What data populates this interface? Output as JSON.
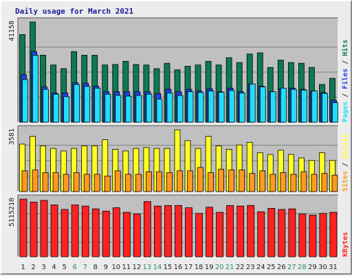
{
  "title": "Daily usage for March 2021",
  "colors": {
    "hits": "#0e7a55",
    "files": "#2244dd",
    "pages": "#22ddff",
    "visits": "#ffff22",
    "sites": "#ff9922",
    "kbytes": "#ff2222",
    "panel_bg": "#c0c0c0",
    "weekend_label": "#2a8a5a",
    "weekday_label": "#222222"
  },
  "chart_data": [
    {
      "type": "bar",
      "panel": "hits-files-pages",
      "max_label": "41158",
      "ymax": 41158,
      "legend": [
        {
          "text": "Pages",
          "color": "#22ddff"
        },
        {
          "text": " / ",
          "color": "#333333"
        },
        {
          "text": "Files",
          "color": "#2244dd"
        },
        {
          "text": " / ",
          "color": "#333333"
        },
        {
          "text": "Hits",
          "color": "#0e7a55"
        }
      ],
      "categories": [
        "1",
        "2",
        "3",
        "4",
        "5",
        "6",
        "7",
        "8",
        "9",
        "10",
        "11",
        "12",
        "13",
        "14",
        "15",
        "16",
        "17",
        "18",
        "19",
        "20",
        "21",
        "22",
        "23",
        "24",
        "25",
        "26",
        "27",
        "28",
        "29",
        "30",
        "31"
      ],
      "series": [
        {
          "name": "Hits",
          "values": [
            36000,
            41158,
            27500,
            23500,
            22000,
            29000,
            27500,
            27500,
            23500,
            23700,
            25000,
            23700,
            23500,
            22000,
            24200,
            21500,
            23000,
            23500,
            25000,
            23500,
            26500,
            24500,
            28000,
            28500,
            22500,
            25500,
            24500,
            24200,
            22500,
            15500,
            18000
          ]
        },
        {
          "name": "Files",
          "values": [
            19500,
            29000,
            14500,
            12000,
            12000,
            16200,
            16000,
            14800,
            12500,
            12500,
            12500,
            12500,
            12500,
            11800,
            13500,
            12500,
            13500,
            12800,
            13800,
            12500,
            14000,
            12500,
            15700,
            14800,
            12500,
            13800,
            14000,
            13500,
            12800,
            12200,
            9000
          ]
        },
        {
          "name": "Pages",
          "values": [
            17500,
            27500,
            13500,
            11500,
            10500,
            15500,
            14700,
            14000,
            11500,
            11000,
            10700,
            11000,
            11500,
            9500,
            12000,
            11000,
            12500,
            12200,
            12800,
            12300,
            13000,
            12000,
            15700,
            14500,
            12500,
            14000,
            13500,
            13200,
            12800,
            11800,
            8000
          ]
        }
      ]
    },
    {
      "type": "bar",
      "panel": "visits-sites",
      "max_label": "3581",
      "ymax": 3581,
      "legend": [
        {
          "text": "Sites",
          "color": "#ff9922"
        },
        {
          "text": " / ",
          "color": "#333333"
        },
        {
          "text": "Visits",
          "color": "#ffff22"
        }
      ],
      "categories": [
        "1",
        "2",
        "3",
        "4",
        "5",
        "6",
        "7",
        "8",
        "9",
        "10",
        "11",
        "12",
        "13",
        "14",
        "15",
        "16",
        "17",
        "18",
        "19",
        "20",
        "21",
        "22",
        "23",
        "24",
        "25",
        "26",
        "27",
        "28",
        "29",
        "30",
        "31"
      ],
      "series": [
        {
          "name": "Visits",
          "values": [
            2750,
            3200,
            2650,
            2500,
            2350,
            2500,
            2650,
            2650,
            3000,
            2450,
            2350,
            2500,
            2550,
            2500,
            2500,
            3581,
            2950,
            2500,
            3200,
            2650,
            2450,
            2700,
            2850,
            2250,
            2150,
            2400,
            2150,
            1950,
            1800,
            2250,
            1800
          ]
        },
        {
          "name": "Sites",
          "values": [
            1200,
            1250,
            1100,
            1100,
            1000,
            1100,
            1000,
            1000,
            900,
            1200,
            1000,
            1000,
            1150,
            1150,
            1100,
            1200,
            1200,
            1400,
            1100,
            1300,
            1250,
            1250,
            1050,
            1200,
            1000,
            1100,
            1000,
            1150,
            1000,
            1050,
            950
          ]
        }
      ]
    },
    {
      "type": "bar",
      "panel": "kbytes",
      "max_label": "5115210",
      "ymax": 5115210,
      "legend": [
        {
          "text": "KBytes",
          "color": "#ff2222"
        }
      ],
      "categories": [
        "1",
        "2",
        "3",
        "4",
        "5",
        "6",
        "7",
        "8",
        "9",
        "10",
        "11",
        "12",
        "13",
        "14",
        "15",
        "16",
        "17",
        "18",
        "19",
        "20",
        "21",
        "22",
        "23",
        "24",
        "25",
        "26",
        "27",
        "28",
        "29",
        "30",
        "31"
      ],
      "series": [
        {
          "name": "KBytes",
          "values": [
            5115210,
            4850000,
            5000000,
            4600000,
            4200000,
            4600000,
            4500000,
            4250000,
            4050000,
            4350000,
            3950000,
            3800000,
            4900000,
            4500000,
            4550000,
            4550000,
            4350000,
            3850000,
            4400000,
            3950000,
            4550000,
            4500000,
            4550000,
            4000000,
            4300000,
            4200000,
            4250000,
            3800000,
            3700000,
            3850000,
            3950000
          ]
        }
      ]
    }
  ],
  "weekend_days": [
    "6",
    "7",
    "13",
    "14",
    "20",
    "21",
    "27",
    "28"
  ]
}
